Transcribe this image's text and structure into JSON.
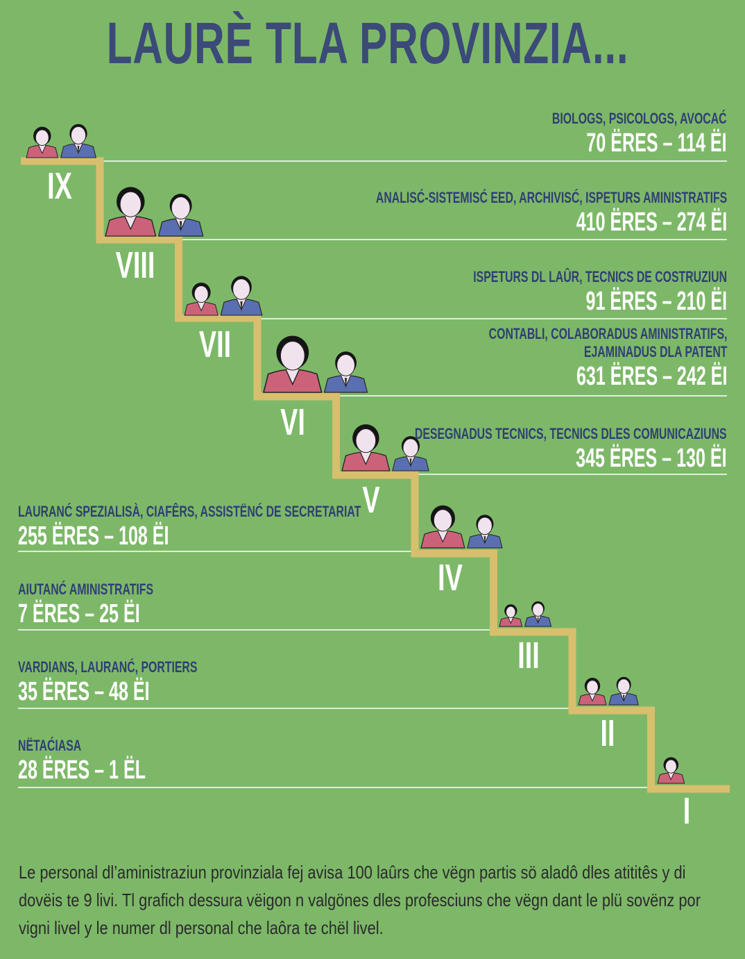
{
  "title": "LAURÈ TLA PROVINZIA...",
  "levels": [
    {
      "roman": "IX",
      "professions": "BIOLOGS, PSICOLOGS, AVOCAĆ",
      "count": "70 ËRES – 114 ËI",
      "women": 70,
      "men": 114
    },
    {
      "roman": "VIII",
      "professions": "ANALISĆ-SISTEMISĆ EED, ARCHIVISĆ, ISPETURS AMINISTRATIFS",
      "count": "410 ËRES – 274 ËI",
      "women": 410,
      "men": 274
    },
    {
      "roman": "VII",
      "professions": "ISPETURS DL LAÛR, TECNICS DE COSTRUZIUN",
      "count": "91 ËRES – 210 ËI",
      "women": 91,
      "men": 210
    },
    {
      "roman": "VI",
      "professions": "CONTABLI, COLABORADUS AMINISTRATIFS,",
      "professions2": "EJAMINADUS DLA PATENT",
      "count": "631 ËRES – 242 ËI",
      "women": 631,
      "men": 242
    },
    {
      "roman": "V",
      "professions": "DESEGNADUS TECNICS, TECNICS DLES COMUNICAZIUNS",
      "count": "345 ËRES – 130 ËI",
      "women": 345,
      "men": 130
    },
    {
      "roman": "IV",
      "professions": "LAURANĆ SPEZIALISÀ, CIAFÊRS, ASSISTËNĆ DE SECRETARIAT",
      "count": "255 ËRES – 108 ËI",
      "women": 255,
      "men": 108
    },
    {
      "roman": "III",
      "professions": "AIUTANĆ AMINISTRATIFS",
      "count": "7 ËRES – 25 ËI",
      "women": 7,
      "men": 25
    },
    {
      "roman": "II",
      "professions": "VARDIANS, LAURANĆ, PORTIERS",
      "count": "35 ËRES – 48 ËI",
      "women": 35,
      "men": 48
    },
    {
      "roman": "I",
      "professions": "NËTAĆIASA",
      "count": "28 ËRES – 1 ËL",
      "women": 28,
      "men": 1
    }
  ],
  "caption": "Le personal dl’aministraziun provinziala fej avisa 100 laûrs che vëgn partis sö aladô dles atititês y di dovëis te 9 livi. Tl grafich dessura vëigon n valgönes dles profesciuns che vëgn dant le plü sovënz por vigni livel y le numer dl personal che laôra te chël livel.",
  "colors": {
    "background": "#7db868",
    "title": "#3b4a78",
    "stair": "#d7bf6e",
    "woman": "#cc6279",
    "man": "#5a6fb1",
    "line": "#ffffff"
  },
  "icons": {
    "woman": "woman-figure-icon",
    "man": "man-figure-icon"
  }
}
